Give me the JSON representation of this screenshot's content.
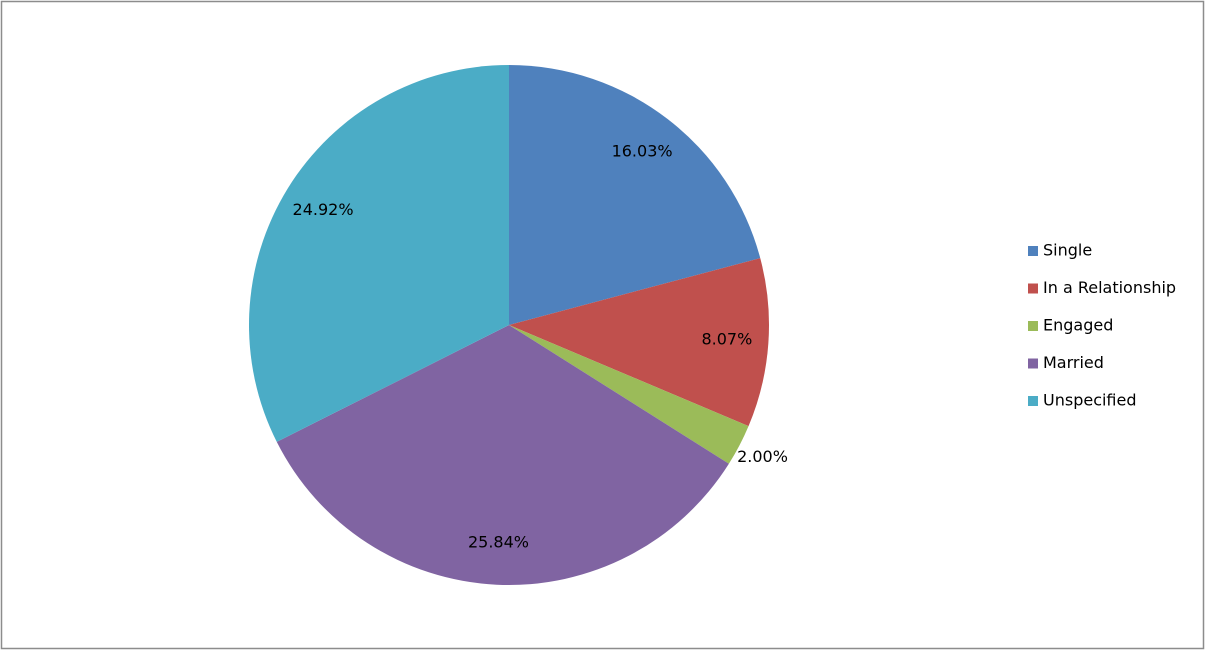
{
  "chart_data": {
    "type": "pie",
    "categories": [
      "Single",
      "In a Relationship",
      "Engaged",
      "Married",
      "Unspecified"
    ],
    "values": [
      16.03,
      8.07,
      2.0,
      25.84,
      24.92
    ],
    "value_labels": [
      "16.03%",
      "8.07%",
      "2.00%",
      "25.84%",
      "24.92%"
    ],
    "colors": [
      "#4f81bd",
      "#c0504d",
      "#9bbb59",
      "#8064a2",
      "#4bacc6"
    ],
    "legend": "right"
  }
}
